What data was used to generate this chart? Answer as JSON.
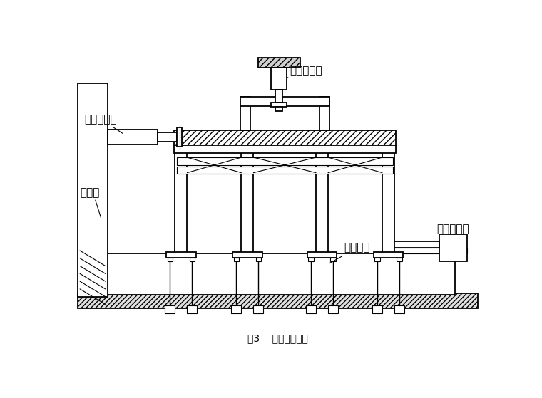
{
  "title": "图3    试验加载装置",
  "title_fontsize": 15,
  "bg_color": "#ffffff",
  "line_color": "#000000",
  "labels": {
    "vjack": "竖向千斤顶",
    "hjack": "水平千斤顶",
    "wall": "反力墙",
    "bolt": "地脚螺栓",
    "limiter": "水平限位架"
  }
}
